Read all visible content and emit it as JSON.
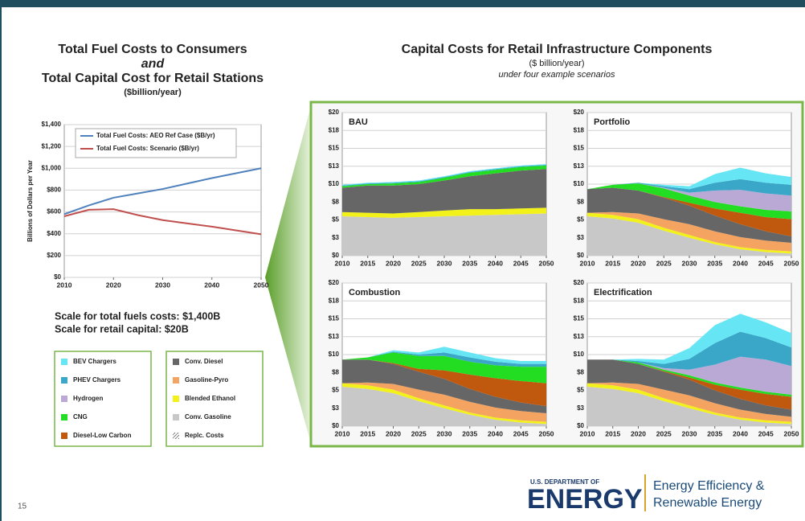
{
  "slide": {
    "left_title": [
      "Total Fuel Costs to Consumers",
      "and",
      "Total Capital Cost for Retail Stations",
      "($billion/year)"
    ],
    "right_title": [
      "Capital Costs for Retail Infrastructure Components",
      "($ billion/year)",
      "under four example scenarios"
    ],
    "scale_notes": [
      "Scale for total fuels costs: $1,400B",
      "Scale for retail capital: $20B"
    ],
    "page_number": "15",
    "logo": {
      "agency": "U.S. DEPARTMENT OF",
      "name": "ENERGY",
      "office": [
        "Energy Efficiency &",
        "Renewable Energy"
      ]
    }
  },
  "legend": [
    {
      "name": "BEV Chargers",
      "color": "#66e6f5"
    },
    {
      "name": "PHEV Chargers",
      "color": "#3aa7c8"
    },
    {
      "name": "Hydrogen",
      "color": "#b9a9d4"
    },
    {
      "name": "CNG",
      "color": "#22dd22"
    },
    {
      "name": "Diesel-Low Carbon",
      "color": "#c0580e"
    },
    {
      "name": "Conv. Diesel",
      "color": "#666666"
    },
    {
      "name": "Gasoline-Pyro",
      "color": "#f4a460"
    },
    {
      "name": "Blended Ethanol",
      "color": "#f2f21a"
    },
    {
      "name": "Conv. Gasoline",
      "color": "#c8c8c8"
    },
    {
      "name": "Replc. Costs"
    }
  ],
  "chart_data": [
    {
      "type": "line",
      "ylabel": "Billions of Dollars per Year",
      "x": [
        2010,
        2015,
        2020,
        2025,
        2030,
        2035,
        2040,
        2045,
        2050
      ],
      "xlim": [
        2010,
        2050
      ],
      "xticks": [
        2010,
        2020,
        2030,
        2040,
        2050
      ],
      "ylim": [
        0,
        1400
      ],
      "yticks": [
        {
          "value": 0,
          "label": "$0"
        },
        {
          "value": 200,
          "label": "$200"
        },
        {
          "value": 400,
          "label": "$400"
        },
        {
          "value": 600,
          "label": "$600"
        },
        {
          "value": 800,
          "label": "$800"
        },
        {
          "value": 1000,
          "label": "$1,000"
        },
        {
          "value": 1200,
          "label": "$1,200"
        },
        {
          "value": 1400,
          "label": "$1,400"
        }
      ],
      "grid": true,
      "series": [
        {
          "name": "Total Fuel Costs: AEO Ref Case ($B/yr)",
          "color": "#4f81bd",
          "values": [
            580,
            660,
            730,
            770,
            810,
            860,
            910,
            955,
            1000
          ]
        },
        {
          "name": "Total Fuel Costs: Scenario ($B/yr)",
          "color": "#c0504d",
          "values": [
            560,
            620,
            625,
            570,
            525,
            495,
            465,
            430,
            395
          ]
        }
      ]
    },
    {
      "type": "area",
      "title": "BAU",
      "x": [
        2010,
        2015,
        2020,
        2025,
        2030,
        2035,
        2040,
        2045,
        2050
      ],
      "xlim": [
        2010,
        2050
      ],
      "xticks": [
        2010,
        2015,
        2020,
        2025,
        2030,
        2035,
        2040,
        2045,
        2050
      ],
      "ylim": [
        0,
        20
      ],
      "yticks": [
        {
          "value": 0,
          "label": "$0"
        },
        {
          "value": 2.5,
          "label": "$3"
        },
        {
          "value": 5,
          "label": "$5"
        },
        {
          "value": 7.5,
          "label": "$8"
        },
        {
          "value": 10,
          "label": "$10"
        },
        {
          "value": 12.5,
          "label": "$13"
        },
        {
          "value": 15,
          "label": "$15"
        },
        {
          "value": 17.5,
          "label": "$18"
        },
        {
          "value": 20,
          "label": "$20"
        }
      ],
      "grid": true,
      "series": [
        {
          "color": "#c8c8c8",
          "values": [
            5.5,
            5.4,
            5.3,
            5.4,
            5.5,
            5.6,
            5.7,
            5.8,
            5.9
          ]
        },
        {
          "color": "#f2f21a",
          "values": [
            0.6,
            0.6,
            0.6,
            0.7,
            0.8,
            0.9,
            0.8,
            0.8,
            0.8
          ]
        },
        {
          "color": "#f4a460",
          "values": [
            0,
            0,
            0,
            0,
            0,
            0,
            0,
            0,
            0
          ]
        },
        {
          "color": "#666666",
          "values": [
            3.4,
            3.8,
            3.9,
            3.9,
            4.2,
            4.6,
            5.0,
            5.3,
            5.4
          ]
        },
        {
          "color": "#c0580e",
          "values": [
            0,
            0,
            0,
            0,
            0,
            0,
            0,
            0,
            0
          ]
        },
        {
          "color": "#22dd22",
          "values": [
            0.2,
            0.2,
            0.3,
            0.3,
            0.4,
            0.5,
            0.5,
            0.5,
            0.5
          ]
        },
        {
          "color": "#b9a9d4",
          "values": [
            0,
            0,
            0,
            0,
            0,
            0,
            0,
            0,
            0
          ]
        },
        {
          "color": "#3aa7c8",
          "values": [
            0.1,
            0.1,
            0.1,
            0.1,
            0.1,
            0.1,
            0.1,
            0.1,
            0.1
          ]
        },
        {
          "color": "#66e6f5",
          "values": [
            0.1,
            0.1,
            0.1,
            0.1,
            0.1,
            0.1,
            0.1,
            0.1,
            0.1
          ]
        }
      ]
    },
    {
      "type": "area",
      "title": "Portfolio",
      "x": [
        2010,
        2015,
        2020,
        2025,
        2030,
        2035,
        2040,
        2045,
        2050
      ],
      "xlim": [
        2010,
        2050
      ],
      "xticks": [
        2010,
        2015,
        2020,
        2025,
        2030,
        2035,
        2040,
        2045,
        2050
      ],
      "ylim": [
        0,
        20
      ],
      "yticks": [
        {
          "value": 0,
          "label": "$0"
        },
        {
          "value": 2.5,
          "label": "$3"
        },
        {
          "value": 5,
          "label": "$5"
        },
        {
          "value": 7.5,
          "label": "$8"
        },
        {
          "value": 10,
          "label": "$10"
        },
        {
          "value": 12.5,
          "label": "$13"
        },
        {
          "value": 15,
          "label": "$15"
        },
        {
          "value": 17.5,
          "label": "$18"
        },
        {
          "value": 20,
          "label": "$20"
        }
      ],
      "grid": true,
      "series": [
        {
          "color": "#c8c8c8",
          "values": [
            5.5,
            5.2,
            4.6,
            3.5,
            2.5,
            1.6,
            0.9,
            0.5,
            0.3
          ]
        },
        {
          "color": "#f2f21a",
          "values": [
            0.5,
            0.5,
            0.5,
            0.4,
            0.4,
            0.3,
            0.3,
            0.3,
            0.3
          ]
        },
        {
          "color": "#f4a460",
          "values": [
            0,
            0.4,
            0.8,
            1.2,
            1.5,
            1.5,
            1.4,
            1.3,
            1.2
          ]
        },
        {
          "color": "#666666",
          "values": [
            3.3,
            3.4,
            3.2,
            3.0,
            2.6,
            2.2,
            1.8,
            1.3,
            0.9
          ]
        },
        {
          "color": "#c0580e",
          "values": [
            0,
            0,
            0,
            0.1,
            0.4,
            1.0,
            1.6,
            2.0,
            2.4
          ]
        },
        {
          "color": "#22dd22",
          "values": [
            0,
            0.4,
            1.0,
            1.2,
            1.0,
            0.9,
            0.9,
            1.0,
            1.1
          ]
        },
        {
          "color": "#b9a9d4",
          "values": [
            0,
            0,
            0,
            0.1,
            0.4,
            1.6,
            2.3,
            2.3,
            2.2
          ]
        },
        {
          "color": "#3aa7c8",
          "values": [
            0,
            0,
            0.1,
            0.2,
            0.5,
            1.1,
            1.5,
            1.5,
            1.5
          ]
        },
        {
          "color": "#66e6f5",
          "values": [
            0,
            0,
            0,
            0.2,
            0.4,
            1.2,
            1.6,
            1.3,
            1.1
          ]
        }
      ]
    },
    {
      "type": "area",
      "title": "Combustion",
      "x": [
        2010,
        2015,
        2020,
        2025,
        2030,
        2035,
        2040,
        2045,
        2050
      ],
      "xlim": [
        2010,
        2050
      ],
      "xticks": [
        2010,
        2015,
        2020,
        2025,
        2030,
        2035,
        2040,
        2045,
        2050
      ],
      "ylim": [
        0,
        20
      ],
      "yticks": [
        {
          "value": 0,
          "label": "$0"
        },
        {
          "value": 2.5,
          "label": "$3"
        },
        {
          "value": 5,
          "label": "$5"
        },
        {
          "value": 7.5,
          "label": "$8"
        },
        {
          "value": 10,
          "label": "$10"
        },
        {
          "value": 12.5,
          "label": "$13"
        },
        {
          "value": 15,
          "label": "$15"
        },
        {
          "value": 17.5,
          "label": "$18"
        },
        {
          "value": 20,
          "label": "$20"
        }
      ],
      "grid": true,
      "series": [
        {
          "color": "#c8c8c8",
          "values": [
            5.5,
            5.2,
            4.6,
            3.5,
            2.5,
            1.6,
            0.9,
            0.5,
            0.3
          ]
        },
        {
          "color": "#f2f21a",
          "values": [
            0.5,
            0.5,
            0.5,
            0.4,
            0.4,
            0.3,
            0.3,
            0.3,
            0.3
          ]
        },
        {
          "color": "#f4a460",
          "values": [
            0,
            0.4,
            0.8,
            1.2,
            1.5,
            1.5,
            1.4,
            1.3,
            1.2
          ]
        },
        {
          "color": "#666666",
          "values": [
            3.3,
            3.2,
            2.8,
            2.5,
            2.2,
            1.8,
            1.5,
            1.2,
            1.0
          ]
        },
        {
          "color": "#c0580e",
          "values": [
            0,
            0,
            0.1,
            0.4,
            1.2,
            2.0,
            2.6,
            3.0,
            3.2
          ]
        },
        {
          "color": "#22dd22",
          "values": [
            0,
            0.3,
            1.5,
            1.8,
            2.0,
            1.8,
            1.8,
            2.0,
            2.3
          ]
        },
        {
          "color": "#b9a9d4",
          "values": [
            0,
            0,
            0,
            0,
            0,
            0,
            0,
            0,
            0
          ]
        },
        {
          "color": "#3aa7c8",
          "values": [
            0,
            0,
            0.1,
            0.2,
            0.5,
            0.6,
            0.5,
            0.4,
            0.4
          ]
        },
        {
          "color": "#66e6f5",
          "values": [
            0,
            0,
            0.2,
            0.3,
            0.8,
            0.7,
            0.5,
            0.4,
            0.4
          ]
        }
      ]
    },
    {
      "type": "area",
      "title": "Electrification",
      "x": [
        2010,
        2015,
        2020,
        2025,
        2030,
        2035,
        2040,
        2045,
        2050
      ],
      "xlim": [
        2010,
        2050
      ],
      "xticks": [
        2010,
        2015,
        2020,
        2025,
        2030,
        2035,
        2040,
        2045,
        2050
      ],
      "ylim": [
        0,
        20
      ],
      "yticks": [
        {
          "value": 0,
          "label": "$0"
        },
        {
          "value": 2.5,
          "label": "$3"
        },
        {
          "value": 5,
          "label": "$5"
        },
        {
          "value": 7.5,
          "label": "$8"
        },
        {
          "value": 10,
          "label": "$10"
        },
        {
          "value": 12.5,
          "label": "$13"
        },
        {
          "value": 15,
          "label": "$15"
        },
        {
          "value": 17.5,
          "label": "$18"
        },
        {
          "value": 20,
          "label": "$20"
        }
      ],
      "grid": true,
      "series": [
        {
          "color": "#c8c8c8",
          "values": [
            5.5,
            5.2,
            4.6,
            3.5,
            2.5,
            1.6,
            0.9,
            0.5,
            0.3
          ]
        },
        {
          "color": "#f2f21a",
          "values": [
            0.5,
            0.5,
            0.5,
            0.4,
            0.4,
            0.3,
            0.3,
            0.3,
            0.3
          ]
        },
        {
          "color": "#f4a460",
          "values": [
            0,
            0.4,
            0.8,
            1.2,
            1.4,
            1.3,
            1.1,
            0.9,
            0.7
          ]
        },
        {
          "color": "#666666",
          "values": [
            3.3,
            3.2,
            2.8,
            2.5,
            2.2,
            1.8,
            1.5,
            1.2,
            1.0
          ]
        },
        {
          "color": "#c0580e",
          "values": [
            0,
            0,
            0,
            0.1,
            0.3,
            0.8,
            1.3,
            1.6,
            1.8
          ]
        },
        {
          "color": "#22dd22",
          "values": [
            0,
            0,
            0.2,
            0.2,
            0.3,
            0.3,
            0.3,
            0.3,
            0.3
          ]
        },
        {
          "color": "#b9a9d4",
          "values": [
            0,
            0,
            0,
            0.2,
            0.8,
            2.5,
            4.3,
            4.5,
            4.0
          ]
        },
        {
          "color": "#3aa7c8",
          "values": [
            0,
            0,
            0.2,
            0.6,
            1.5,
            3.0,
            3.5,
            3.0,
            2.6
          ]
        },
        {
          "color": "#66e6f5",
          "values": [
            0,
            0,
            0.3,
            0.6,
            1.5,
            2.5,
            2.5,
            2.2,
            2.0
          ]
        }
      ]
    }
  ]
}
